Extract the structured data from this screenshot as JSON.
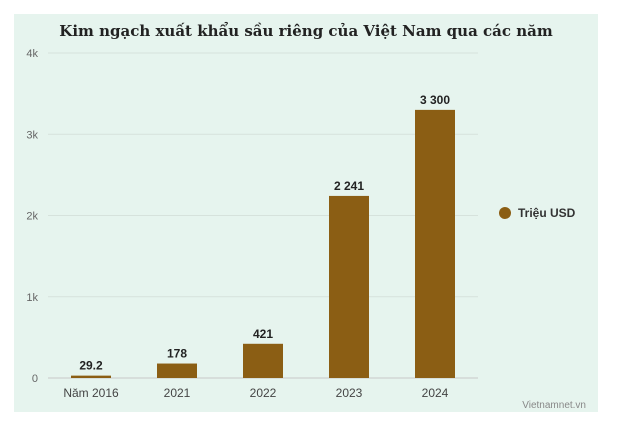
{
  "chart_data": {
    "type": "bar",
    "title": "Kim ngạch xuất khẩu sầu riêng của Việt Nam qua các năm",
    "categories": [
      "Năm 2016",
      "2021",
      "2022",
      "2023",
      "2024"
    ],
    "series": [
      {
        "name": "Triệu USD",
        "values": [
          29.2,
          178,
          421,
          2241,
          3300
        ],
        "data_labels": [
          "29.2",
          "178",
          "421",
          "2 241",
          "3 300"
        ],
        "color": "#8b5e14"
      }
    ],
    "ylim": [
      0,
      4000
    ],
    "yticks": [
      0,
      1000,
      2000,
      3000,
      4000
    ],
    "ytick_labels": [
      "0",
      "1k",
      "2k",
      "3k",
      "4k"
    ],
    "xlabel": "",
    "ylabel": "",
    "grid": true,
    "legend_position": "right"
  },
  "source": "Vietnamnet.vn"
}
